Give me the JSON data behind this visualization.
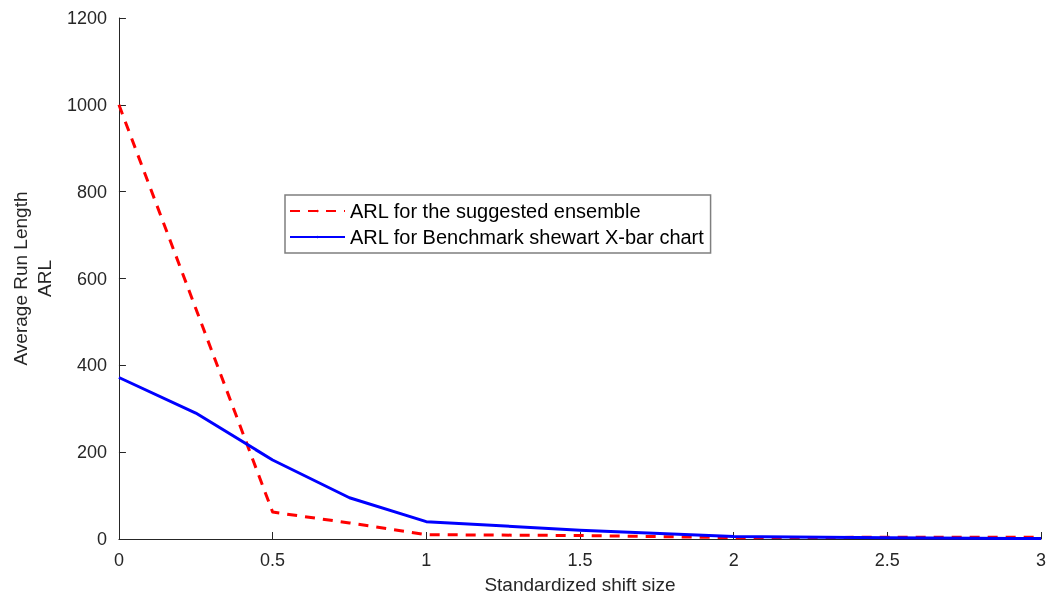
{
  "chart_data": {
    "type": "line",
    "xlabel": "Standardized shift size",
    "ylabel": "Average Run Length\nARL",
    "x": [
      0,
      0.25,
      0.5,
      0.75,
      1,
      1.5,
      2,
      2.5,
      3
    ],
    "series": [
      {
        "name": "ARL for the suggested ensemble",
        "color": "#ff0000",
        "line_style": "dashed",
        "values": [
          1000,
          531,
          62,
          37,
          10,
          8,
          3,
          4,
          4
        ]
      },
      {
        "name": "ARL for Benchmark shewart X-bar chart",
        "color": "#0000ff",
        "line_style": "solid",
        "values": [
          372,
          290,
          182,
          95,
          40,
          20,
          6,
          3,
          1
        ]
      }
    ],
    "xlim": [
      0,
      3
    ],
    "xticks": [
      0,
      0.5,
      1,
      1.5,
      2,
      2.5,
      3
    ],
    "ylim": [
      0,
      1200
    ],
    "yticks": [
      0,
      200,
      400,
      600,
      800,
      1000,
      1200
    ],
    "grid": false,
    "legend": "left",
    "marker": "none"
  }
}
